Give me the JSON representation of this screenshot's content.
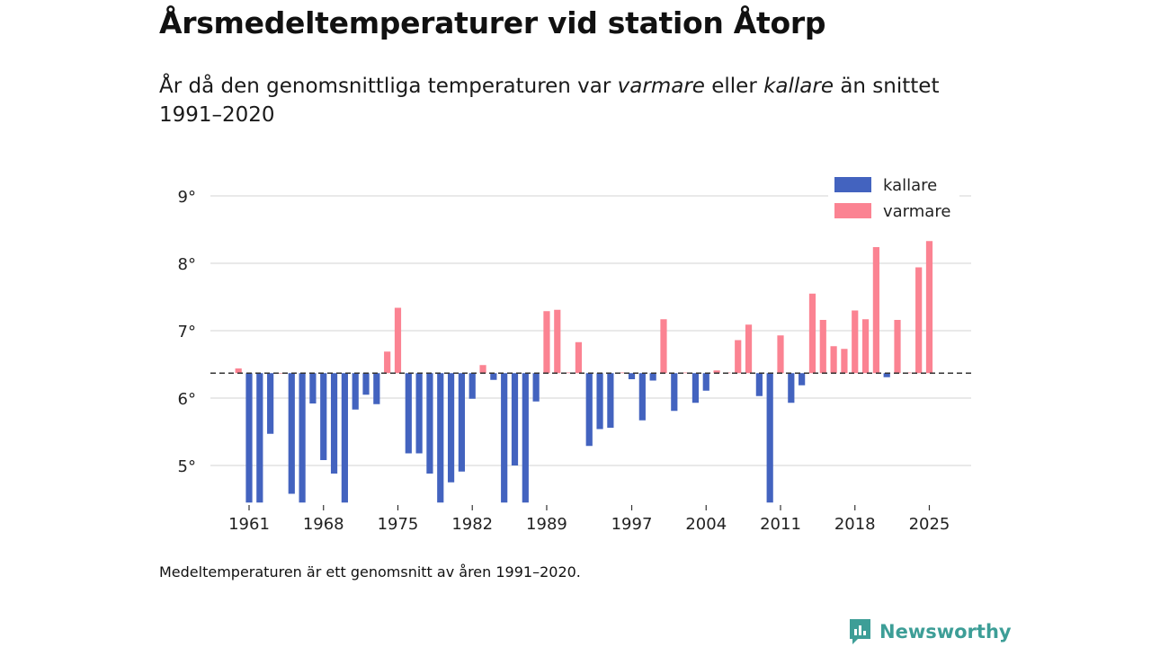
{
  "title": "Årsmedeltemperaturer vid station Åtorp",
  "subtitle": {
    "part1": "År då den genomsnittliga temperaturen var ",
    "warmer": "varmare",
    "part2": " eller ",
    "colder": "kallare",
    "part3": " än snittet 1991–2020"
  },
  "note": "Medeltemperaturen är ett genomsnitt av åren 1991–2020.",
  "brand": "Newsworthy",
  "colors": {
    "colder": "#4363bf",
    "warmer": "#fb8392",
    "brand": "#3d9e97"
  },
  "chart_data": {
    "type": "bar",
    "title": "Årsmedeltemperaturer vid station Åtorp",
    "baseline": 6.37,
    "baseline_label": "snittet 1991–2020",
    "ylim": [
      4.45,
      9.25
    ],
    "yticks": [
      5,
      6,
      7,
      8,
      9
    ],
    "ytick_labels": [
      "5°",
      "6°",
      "7°",
      "8°",
      "9°"
    ],
    "xticks": [
      1961,
      1968,
      1975,
      1982,
      1989,
      1997,
      2004,
      2011,
      2018,
      2025
    ],
    "legend": [
      {
        "key": "colder",
        "label": "kallare"
      },
      {
        "key": "warmer",
        "label": "varmare"
      }
    ],
    "years": [
      1960,
      1961,
      1962,
      1963,
      1964,
      1965,
      1966,
      1967,
      1968,
      1969,
      1970,
      1971,
      1972,
      1973,
      1974,
      1975,
      1976,
      1977,
      1978,
      1979,
      1980,
      1981,
      1982,
      1983,
      1984,
      1985,
      1986,
      1987,
      1988,
      1989,
      1990,
      1991,
      1992,
      1993,
      1994,
      1995,
      1996,
      1997,
      1998,
      1999,
      2000,
      2001,
      2002,
      2003,
      2004,
      2005,
      2006,
      2007,
      2008,
      2009,
      2010,
      2011,
      2012,
      2013,
      2014,
      2015,
      2016,
      2017,
      2018,
      2019,
      2020,
      2021,
      2022,
      2023,
      2024,
      2025
    ],
    "values": [
      6.44,
      4.45,
      4.45,
      5.47,
      6.37,
      4.58,
      4.45,
      5.92,
      5.08,
      4.88,
      4.45,
      5.83,
      6.05,
      5.91,
      6.69,
      7.34,
      5.18,
      5.18,
      4.88,
      4.45,
      4.75,
      4.91,
      5.99,
      6.49,
      6.27,
      4.45,
      5.0,
      4.45,
      5.95,
      7.29,
      7.31,
      6.38,
      6.83,
      5.29,
      5.54,
      5.56,
      6.38,
      6.28,
      5.67,
      6.26,
      7.17,
      5.81,
      6.38,
      5.93,
      6.11,
      6.41,
      6.38,
      6.86,
      7.09,
      6.03,
      4.45,
      6.93,
      5.93,
      6.19,
      7.55,
      7.16,
      6.77,
      6.73,
      7.3,
      7.17,
      8.24,
      6.31,
      7.16,
      6.38,
      7.94,
      8.33
    ]
  }
}
